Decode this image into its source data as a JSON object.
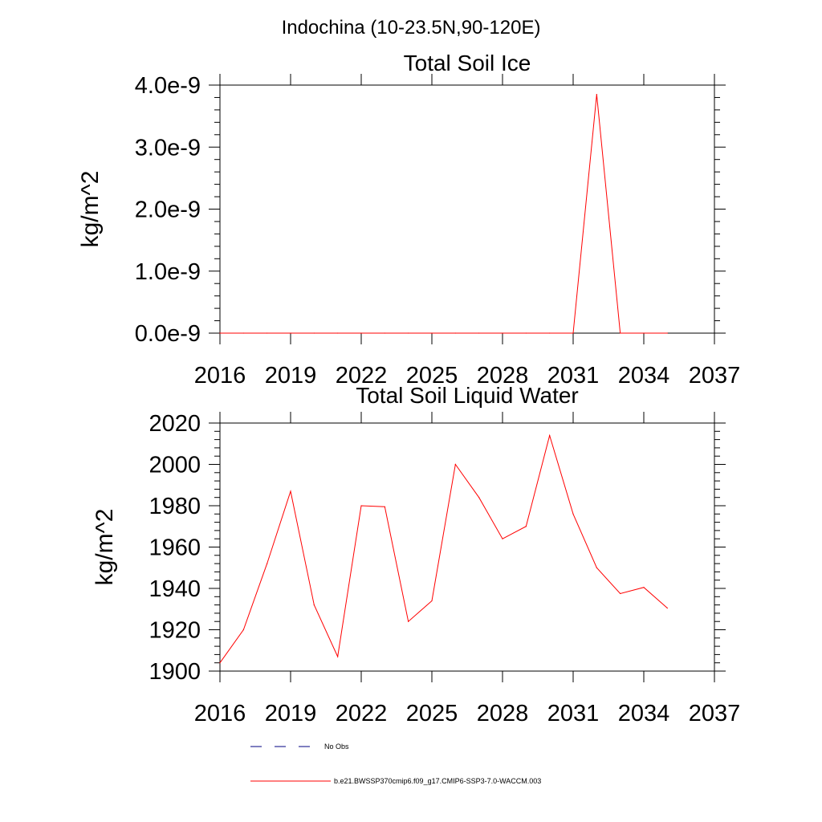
{
  "figure_title": "Indochina (10-23.5N,90-120E)",
  "colors": {
    "model": "#ff0000",
    "obs": "#000080",
    "axis": "#000000"
  },
  "legend": {
    "obs_label": "No Obs",
    "model_label": "b.e21.BWSSP370cmip6.f09_g17.CMIP6-SSP3-7.0-WACCM.003"
  },
  "chart_data": [
    {
      "type": "line",
      "title": "Total Soil Ice",
      "ylabel": "kg/m^2",
      "xlim": [
        2016,
        2037
      ],
      "ylim": [
        0,
        4e-09
      ],
      "xticks": [
        2016,
        2019,
        2022,
        2025,
        2028,
        2031,
        2034,
        2037
      ],
      "xtick_labels": [
        "2016",
        "2019",
        "2022",
        "2025",
        "2028",
        "2031",
        "2034",
        "2037"
      ],
      "yticks": [
        0,
        1e-09,
        2e-09,
        3e-09,
        4e-09
      ],
      "ytick_labels": [
        "0.0e-9",
        "1.0e-9",
        "2.0e-9",
        "3.0e-9",
        "4.0e-9"
      ],
      "series": [
        {
          "name": "b.e21.BWSSP370cmip6.f09_g17.CMIP6-SSP3-7.0-WACCM.003",
          "x": [
            2016,
            2017,
            2018,
            2019,
            2020,
            2021,
            2022,
            2023,
            2024,
            2025,
            2026,
            2027,
            2028,
            2029,
            2030,
            2031,
            2032,
            2033,
            2034,
            2035
          ],
          "values": [
            0,
            0,
            0,
            0,
            0,
            0,
            0,
            0,
            0,
            0,
            0,
            0,
            0,
            0,
            0,
            0,
            3.85e-09,
            0,
            0,
            0
          ]
        }
      ]
    },
    {
      "type": "line",
      "title": "Total Soil Liquid Water",
      "ylabel": "kg/m^2",
      "xlim": [
        2016,
        2037
      ],
      "ylim": [
        1900,
        2020
      ],
      "xticks": [
        2016,
        2019,
        2022,
        2025,
        2028,
        2031,
        2034,
        2037
      ],
      "xtick_labels": [
        "2016",
        "2019",
        "2022",
        "2025",
        "2028",
        "2031",
        "2034",
        "2037"
      ],
      "yticks": [
        1900,
        1920,
        1940,
        1960,
        1980,
        2000,
        2020
      ],
      "ytick_labels": [
        "1900",
        "1920",
        "1940",
        "1960",
        "1980",
        "2000",
        "2020"
      ],
      "series": [
        {
          "name": "b.e21.BWSSP370cmip6.f09_g17.CMIP6-SSP3-7.0-WACCM.003",
          "x": [
            2016,
            2017,
            2018,
            2019,
            2020,
            2021,
            2022,
            2023,
            2024,
            2025,
            2026,
            2027,
            2028,
            2029,
            2030,
            2031,
            2032,
            2033,
            2034,
            2035
          ],
          "values": [
            1904,
            1920,
            1952,
            1987,
            1932,
            1907,
            1980,
            1979.5,
            1924,
            1934,
            2000,
            1984,
            1964,
            1970,
            2014,
            1976,
            1950,
            1937.5,
            1940.5,
            1930.5
          ]
        }
      ]
    }
  ]
}
